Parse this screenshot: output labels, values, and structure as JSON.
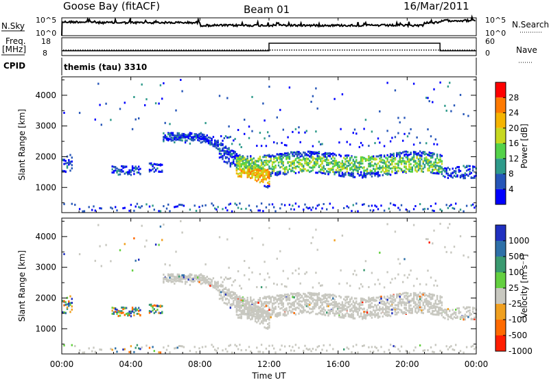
{
  "header": {
    "title_left": "Goose Bay (fitACF)",
    "title_center": "Beam 01",
    "title_right": "16/Mar/2011"
  },
  "top_panels": {
    "nsky_label": "N.Sky",
    "nsky_ticks": [
      "10^5",
      "10^0"
    ],
    "nsky_right_ticks": [
      "10^5",
      "10^0"
    ],
    "nsearch_label": "N.Search",
    "freq_label_1": "Freq.",
    "freq_label_2": "[MHz]",
    "freq_ticks": [
      "18",
      "8"
    ],
    "nave_ticks": [
      "60",
      "0"
    ],
    "nave_label": "Nave",
    "cpid_label": "CPID",
    "cpid_value": "themis (tau) 3310"
  },
  "chart_data": [
    {
      "type": "heatmap",
      "name": "power",
      "ylabel": "Slant Range [km]",
      "yticks": [
        "1000",
        "2000",
        "3000",
        "4000"
      ],
      "colorbar_label": "Power [dB]",
      "colorbar_ticks": [
        "4",
        "8",
        "12",
        "16",
        "20",
        "24",
        "28"
      ],
      "colors": [
        "#0000ff",
        "#2656b8",
        "#2e9a8a",
        "#54d24a",
        "#c7d820",
        "#f5b400",
        "#ff7a00",
        "#ff0000"
      ],
      "x_range_hours": [
        0,
        24
      ],
      "y_range_km": [
        180,
        4600
      ]
    },
    {
      "type": "heatmap",
      "name": "velocity",
      "ylabel": "Slant Range [km]",
      "yticks": [
        "1000",
        "2000",
        "3000",
        "4000"
      ],
      "colorbar_label": "Velocity [m s⁻¹]",
      "colorbar_ticks": [
        "1000",
        "500",
        "100",
        "25",
        "-25",
        "-100",
        "-500",
        "-1000"
      ],
      "colors": [
        "#2030c0",
        "#2e70a8",
        "#3a9a70",
        "#64d040",
        "#c8c8c0",
        "#f0a020",
        "#ff6a00",
        "#ff1e00"
      ],
      "x_range_hours": [
        0,
        24
      ],
      "y_range_km": [
        180,
        4600
      ]
    }
  ],
  "x_axis": {
    "label": "Time UT",
    "ticks": [
      "00:00",
      "04:00",
      "08:00",
      "12:00",
      "16:00",
      "20:00",
      "00:00"
    ]
  }
}
